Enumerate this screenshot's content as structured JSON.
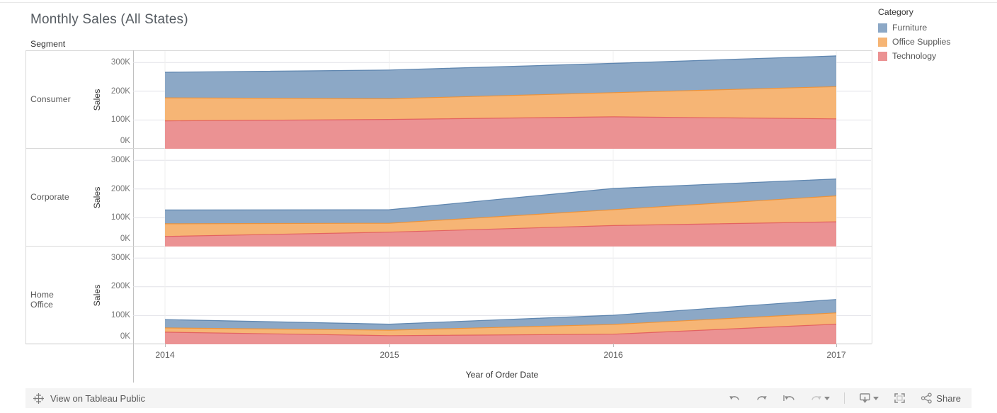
{
  "title": "Monthly Sales (All States)",
  "legend": {
    "title": "Category",
    "items": [
      {
        "label": "Furniture",
        "fill": "#8ca8c6",
        "line": "#4e79a7"
      },
      {
        "label": "Office Supplies",
        "fill": "#f6b575",
        "line": "#f28e2b"
      },
      {
        "label": "Technology",
        "fill": "#eb9293",
        "line": "#e15759"
      }
    ]
  },
  "toolbar": {
    "view_on_label": "View on Tableau Public",
    "share_label": "Share",
    "icons": [
      "tableau-logo",
      "undo",
      "redo",
      "revert",
      "refresh",
      "download",
      "fullscreen",
      "share"
    ]
  },
  "chart_data": {
    "type": "area",
    "stacked": true,
    "row_field": "Segment",
    "legend_field": "Category",
    "x": [
      "2014",
      "2015",
      "2016",
      "2017"
    ],
    "x_axis_title": "Year of Order Date",
    "y_axis_title": "Sales",
    "y_ticks": [
      "0K",
      "100K",
      "200K",
      "300K"
    ],
    "y_unit": "thousands (K)",
    "ylim_k": [
      0,
      339
    ],
    "grid": true,
    "stack_order_bottom_to_top": [
      "Technology",
      "Office Supplies",
      "Furniture"
    ],
    "rows": [
      {
        "segment": "Consumer",
        "series": [
          {
            "name": "Technology",
            "values_k": [
              97,
              102,
              111,
              104
            ]
          },
          {
            "name": "Office Supplies",
            "values_k": [
              80,
              72,
              84,
              112
            ]
          },
          {
            "name": "Furniture",
            "values_k": [
              89,
              100,
              102,
              107
            ]
          }
        ],
        "totals_k": [
          266,
          274,
          297,
          323
        ]
      },
      {
        "segment": "Corporate",
        "series": [
          {
            "name": "Technology",
            "values_k": [
              35,
              50,
              73,
              86
            ]
          },
          {
            "name": "Office Supplies",
            "values_k": [
              44,
              31,
              55,
              90
            ]
          },
          {
            "name": "Furniture",
            "values_k": [
              48,
              47,
              74,
              59
            ]
          }
        ],
        "totals_k": [
          127,
          128,
          202,
          235
        ]
      },
      {
        "segment": "Home Office",
        "series": [
          {
            "name": "Technology",
            "values_k": [
              42,
              30,
              35,
              70
            ]
          },
          {
            "name": "Office Supplies",
            "values_k": [
              15,
              19,
              34,
              39
            ]
          },
          {
            "name": "Furniture",
            "values_k": [
              29,
              21,
              32,
              47
            ]
          }
        ],
        "totals_k": [
          86,
          70,
          101,
          156
        ]
      }
    ]
  }
}
